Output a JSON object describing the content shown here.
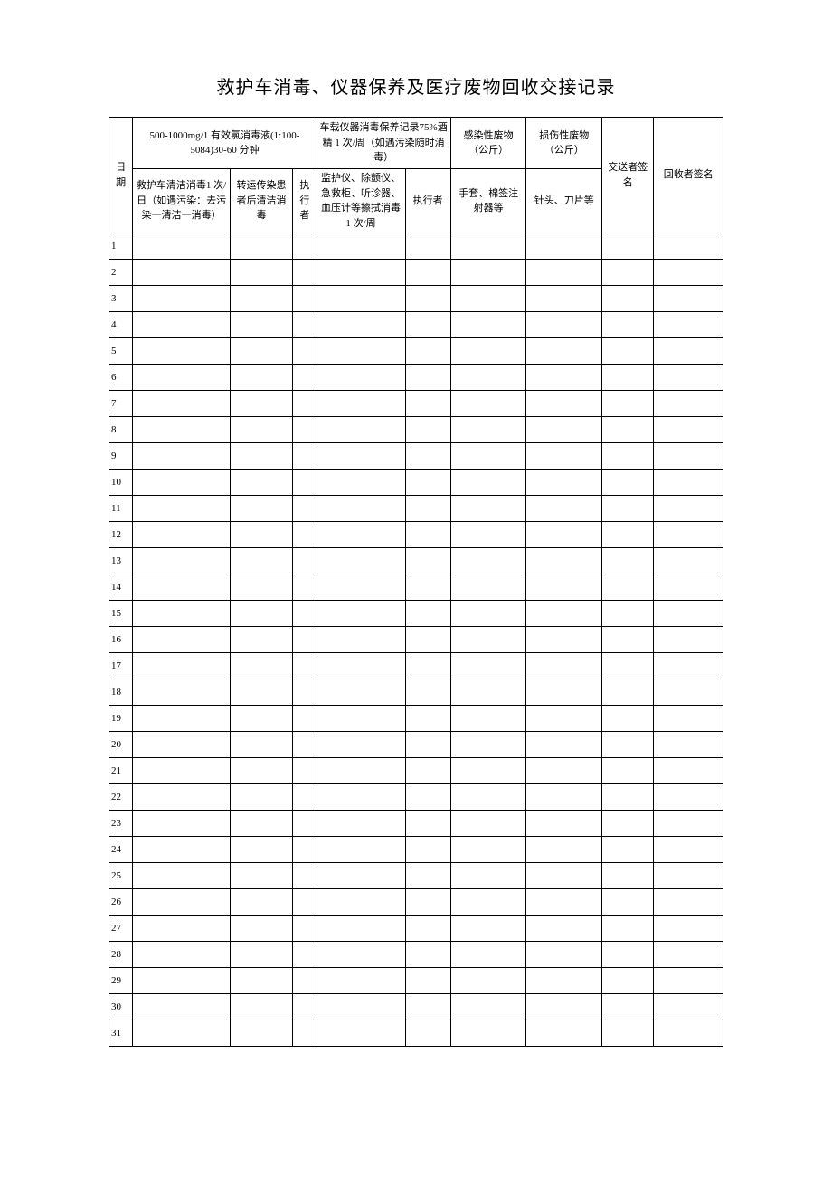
{
  "title": "救护车消毒、仪器保养及医疗废物回收交接记录",
  "headers": {
    "date": "日期",
    "group1": "500-1000mg/1 有效氯消毒液(1:100-5084)30-60 分钟",
    "group2": "车载仪器消毒保养记录75%酒精 1 次/周（如遇污染随时消毒）",
    "group3": "感染性废物（公斤）",
    "group4": "损伤性废物（公斤）",
    "sender": "交送者签名",
    "receiver": "回收者签名",
    "sub_a": "救护车清洁消毒1 次/日（如遇污染：去污染一清洁一消毒）",
    "sub_b": "转运传染患者后清洁消毒",
    "sub_c": "执行者",
    "sub_d": "监护仪、除颤仪、急救柜、听诊器、血压计等擦拭消毒1 次/周",
    "sub_e": "执行者",
    "sub_f": "手套、棉签注射器等",
    "sub_g": "针头、刀片等"
  },
  "rows": [
    "1",
    "2",
    "3",
    "4",
    "5",
    "6",
    "7",
    "8",
    "9",
    "10",
    "11",
    "12",
    "13",
    "14",
    "15",
    "16",
    "17",
    "18",
    "19",
    "20",
    "21",
    "22",
    "23",
    "24",
    "25",
    "26",
    "27",
    "28",
    "29",
    "30",
    "31"
  ]
}
